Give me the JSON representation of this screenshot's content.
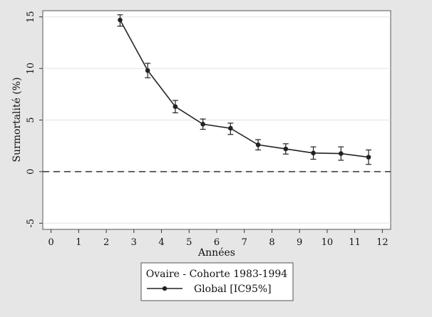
{
  "chart_data": {
    "type": "line",
    "title": "",
    "xlabel": "Années",
    "ylabel": "Surmortalité (%)",
    "xlim": [
      -0.3,
      12.3
    ],
    "ylim": [
      -5.6,
      15.6
    ],
    "x_ticks": [
      0,
      1,
      2,
      3,
      4,
      5,
      6,
      7,
      8,
      9,
      10,
      11,
      12
    ],
    "y_ticks": [
      -5,
      0,
      5,
      10,
      15
    ],
    "y_tick_labels": [
      "-5",
      "0",
      "5",
      "10",
      "15"
    ],
    "grid": true,
    "reference_line": {
      "y": 0,
      "style": "dashed"
    },
    "legend": {
      "placement": "bottom-center",
      "title": "Ovaire - Cohorte 1983-1994",
      "entries": [
        "Global [IC95%]"
      ]
    },
    "series": [
      {
        "name": "Global [IC95%]",
        "color": "#222222",
        "x": [
          2.5,
          3.5,
          4.5,
          5.5,
          6.5,
          7.5,
          8.5,
          9.5,
          10.5,
          11.5
        ],
        "y": [
          14.7,
          9.8,
          6.3,
          4.6,
          4.2,
          2.6,
          2.2,
          1.8,
          1.75,
          1.4
        ],
        "ci_low": [
          14.1,
          9.1,
          5.7,
          4.1,
          3.6,
          2.1,
          1.7,
          1.2,
          1.1,
          0.7
        ],
        "ci_high": [
          15.2,
          10.5,
          6.9,
          5.1,
          4.7,
          3.1,
          2.7,
          2.4,
          2.4,
          2.1
        ]
      }
    ]
  }
}
